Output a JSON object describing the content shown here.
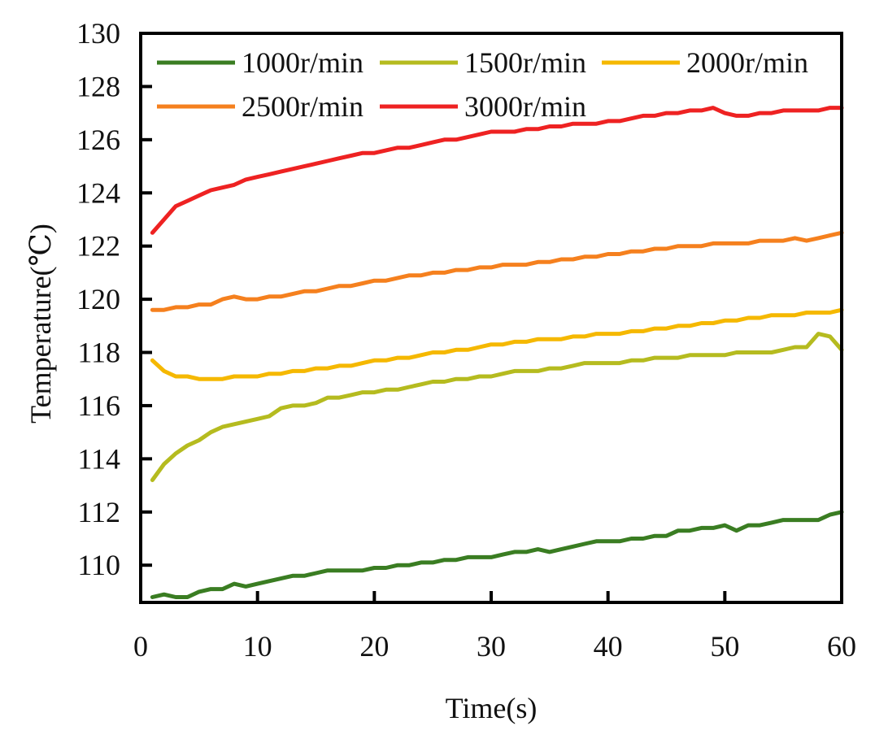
{
  "chart_data": {
    "type": "line",
    "title": "",
    "xlabel": "Time(s)",
    "ylabel": "Temperature(℃)",
    "xlim": [
      0,
      60
    ],
    "ylim": [
      108.6,
      130
    ],
    "xticks": [
      0,
      10,
      20,
      30,
      40,
      50,
      60
    ],
    "yticks": [
      110,
      112,
      114,
      116,
      118,
      120,
      122,
      124,
      126,
      128,
      130
    ],
    "grid": false,
    "legend_position": "top",
    "series": [
      {
        "name": "1000r/min",
        "color": "#3a7d22",
        "x": [
          1,
          2,
          3,
          4,
          5,
          6,
          7,
          8,
          9,
          10,
          11,
          12,
          13,
          14,
          15,
          16,
          17,
          18,
          19,
          20,
          21,
          22,
          23,
          24,
          25,
          26,
          27,
          28,
          29,
          30,
          31,
          32,
          33,
          34,
          35,
          36,
          37,
          38,
          39,
          40,
          41,
          42,
          43,
          44,
          45,
          46,
          47,
          48,
          49,
          50,
          51,
          52,
          53,
          54,
          55,
          56,
          57,
          58,
          59,
          60
        ],
        "values": [
          108.8,
          108.9,
          108.8,
          108.8,
          109.0,
          109.1,
          109.1,
          109.3,
          109.2,
          109.3,
          109.4,
          109.5,
          109.6,
          109.6,
          109.7,
          109.8,
          109.8,
          109.8,
          109.8,
          109.9,
          109.9,
          110.0,
          110.0,
          110.1,
          110.1,
          110.2,
          110.2,
          110.3,
          110.3,
          110.3,
          110.4,
          110.5,
          110.5,
          110.6,
          110.5,
          110.6,
          110.7,
          110.8,
          110.9,
          110.9,
          110.9,
          111.0,
          111.0,
          111.1,
          111.1,
          111.3,
          111.3,
          111.4,
          111.4,
          111.5,
          111.3,
          111.5,
          111.5,
          111.6,
          111.7,
          111.7,
          111.7,
          111.7,
          111.9,
          112.0
        ]
      },
      {
        "name": "1500r/min",
        "color": "#b5bb1f",
        "x": [
          1,
          2,
          3,
          4,
          5,
          6,
          7,
          8,
          9,
          10,
          11,
          12,
          13,
          14,
          15,
          16,
          17,
          18,
          19,
          20,
          21,
          22,
          23,
          24,
          25,
          26,
          27,
          28,
          29,
          30,
          31,
          32,
          33,
          34,
          35,
          36,
          37,
          38,
          39,
          40,
          41,
          42,
          43,
          44,
          45,
          46,
          47,
          48,
          49,
          50,
          51,
          52,
          53,
          54,
          55,
          56,
          57,
          58,
          59,
          60
        ],
        "values": [
          113.2,
          113.8,
          114.2,
          114.5,
          114.7,
          115.0,
          115.2,
          115.3,
          115.4,
          115.5,
          115.6,
          115.9,
          116.0,
          116.0,
          116.1,
          116.3,
          116.3,
          116.4,
          116.5,
          116.5,
          116.6,
          116.6,
          116.7,
          116.8,
          116.9,
          116.9,
          117.0,
          117.0,
          117.1,
          117.1,
          117.2,
          117.3,
          117.3,
          117.3,
          117.4,
          117.4,
          117.5,
          117.6,
          117.6,
          117.6,
          117.6,
          117.7,
          117.7,
          117.8,
          117.8,
          117.8,
          117.9,
          117.9,
          117.9,
          117.9,
          118.0,
          118.0,
          118.0,
          118.0,
          118.1,
          118.2,
          118.2,
          118.7,
          118.6,
          118.1
        ]
      },
      {
        "name": "2000r/min",
        "color": "#f5b800",
        "x": [
          1,
          2,
          3,
          4,
          5,
          6,
          7,
          8,
          9,
          10,
          11,
          12,
          13,
          14,
          15,
          16,
          17,
          18,
          19,
          20,
          21,
          22,
          23,
          24,
          25,
          26,
          27,
          28,
          29,
          30,
          31,
          32,
          33,
          34,
          35,
          36,
          37,
          38,
          39,
          40,
          41,
          42,
          43,
          44,
          45,
          46,
          47,
          48,
          49,
          50,
          51,
          52,
          53,
          54,
          55,
          56,
          57,
          58,
          59,
          60
        ],
        "values": [
          117.7,
          117.3,
          117.1,
          117.1,
          117.0,
          117.0,
          117.0,
          117.1,
          117.1,
          117.1,
          117.2,
          117.2,
          117.3,
          117.3,
          117.4,
          117.4,
          117.5,
          117.5,
          117.6,
          117.7,
          117.7,
          117.8,
          117.8,
          117.9,
          118.0,
          118.0,
          118.1,
          118.1,
          118.2,
          118.3,
          118.3,
          118.4,
          118.4,
          118.5,
          118.5,
          118.5,
          118.6,
          118.6,
          118.7,
          118.7,
          118.7,
          118.8,
          118.8,
          118.9,
          118.9,
          119.0,
          119.0,
          119.1,
          119.1,
          119.2,
          119.2,
          119.3,
          119.3,
          119.4,
          119.4,
          119.4,
          119.5,
          119.5,
          119.5,
          119.6
        ]
      },
      {
        "name": "2500r/min",
        "color": "#f5801e",
        "x": [
          1,
          2,
          3,
          4,
          5,
          6,
          7,
          8,
          9,
          10,
          11,
          12,
          13,
          14,
          15,
          16,
          17,
          18,
          19,
          20,
          21,
          22,
          23,
          24,
          25,
          26,
          27,
          28,
          29,
          30,
          31,
          32,
          33,
          34,
          35,
          36,
          37,
          38,
          39,
          40,
          41,
          42,
          43,
          44,
          45,
          46,
          47,
          48,
          49,
          50,
          51,
          52,
          53,
          54,
          55,
          56,
          57,
          58,
          59,
          60
        ],
        "values": [
          119.6,
          119.6,
          119.7,
          119.7,
          119.8,
          119.8,
          120.0,
          120.1,
          120.0,
          120.0,
          120.1,
          120.1,
          120.2,
          120.3,
          120.3,
          120.4,
          120.5,
          120.5,
          120.6,
          120.7,
          120.7,
          120.8,
          120.9,
          120.9,
          121.0,
          121.0,
          121.1,
          121.1,
          121.2,
          121.2,
          121.3,
          121.3,
          121.3,
          121.4,
          121.4,
          121.5,
          121.5,
          121.6,
          121.6,
          121.7,
          121.7,
          121.8,
          121.8,
          121.9,
          121.9,
          122.0,
          122.0,
          122.0,
          122.1,
          122.1,
          122.1,
          122.1,
          122.2,
          122.2,
          122.2,
          122.3,
          122.2,
          122.3,
          122.4,
          122.5
        ]
      },
      {
        "name": "3000r/min",
        "color": "#ee2222",
        "x": [
          1,
          2,
          3,
          4,
          5,
          6,
          7,
          8,
          9,
          10,
          11,
          12,
          13,
          14,
          15,
          16,
          17,
          18,
          19,
          20,
          21,
          22,
          23,
          24,
          25,
          26,
          27,
          28,
          29,
          30,
          31,
          32,
          33,
          34,
          35,
          36,
          37,
          38,
          39,
          40,
          41,
          42,
          43,
          44,
          45,
          46,
          47,
          48,
          49,
          50,
          51,
          52,
          53,
          54,
          55,
          56,
          57,
          58,
          59,
          60
        ],
        "values": [
          122.5,
          123.0,
          123.5,
          123.7,
          123.9,
          124.1,
          124.2,
          124.3,
          124.5,
          124.6,
          124.7,
          124.8,
          124.9,
          125.0,
          125.1,
          125.2,
          125.3,
          125.4,
          125.5,
          125.5,
          125.6,
          125.7,
          125.7,
          125.8,
          125.9,
          126.0,
          126.0,
          126.1,
          126.2,
          126.3,
          126.3,
          126.3,
          126.4,
          126.4,
          126.5,
          126.5,
          126.6,
          126.6,
          126.6,
          126.7,
          126.7,
          126.8,
          126.9,
          126.9,
          127.0,
          127.0,
          127.1,
          127.1,
          127.2,
          127.0,
          126.9,
          126.9,
          127.0,
          127.0,
          127.1,
          127.1,
          127.1,
          127.1,
          127.2,
          127.2
        ]
      }
    ]
  }
}
